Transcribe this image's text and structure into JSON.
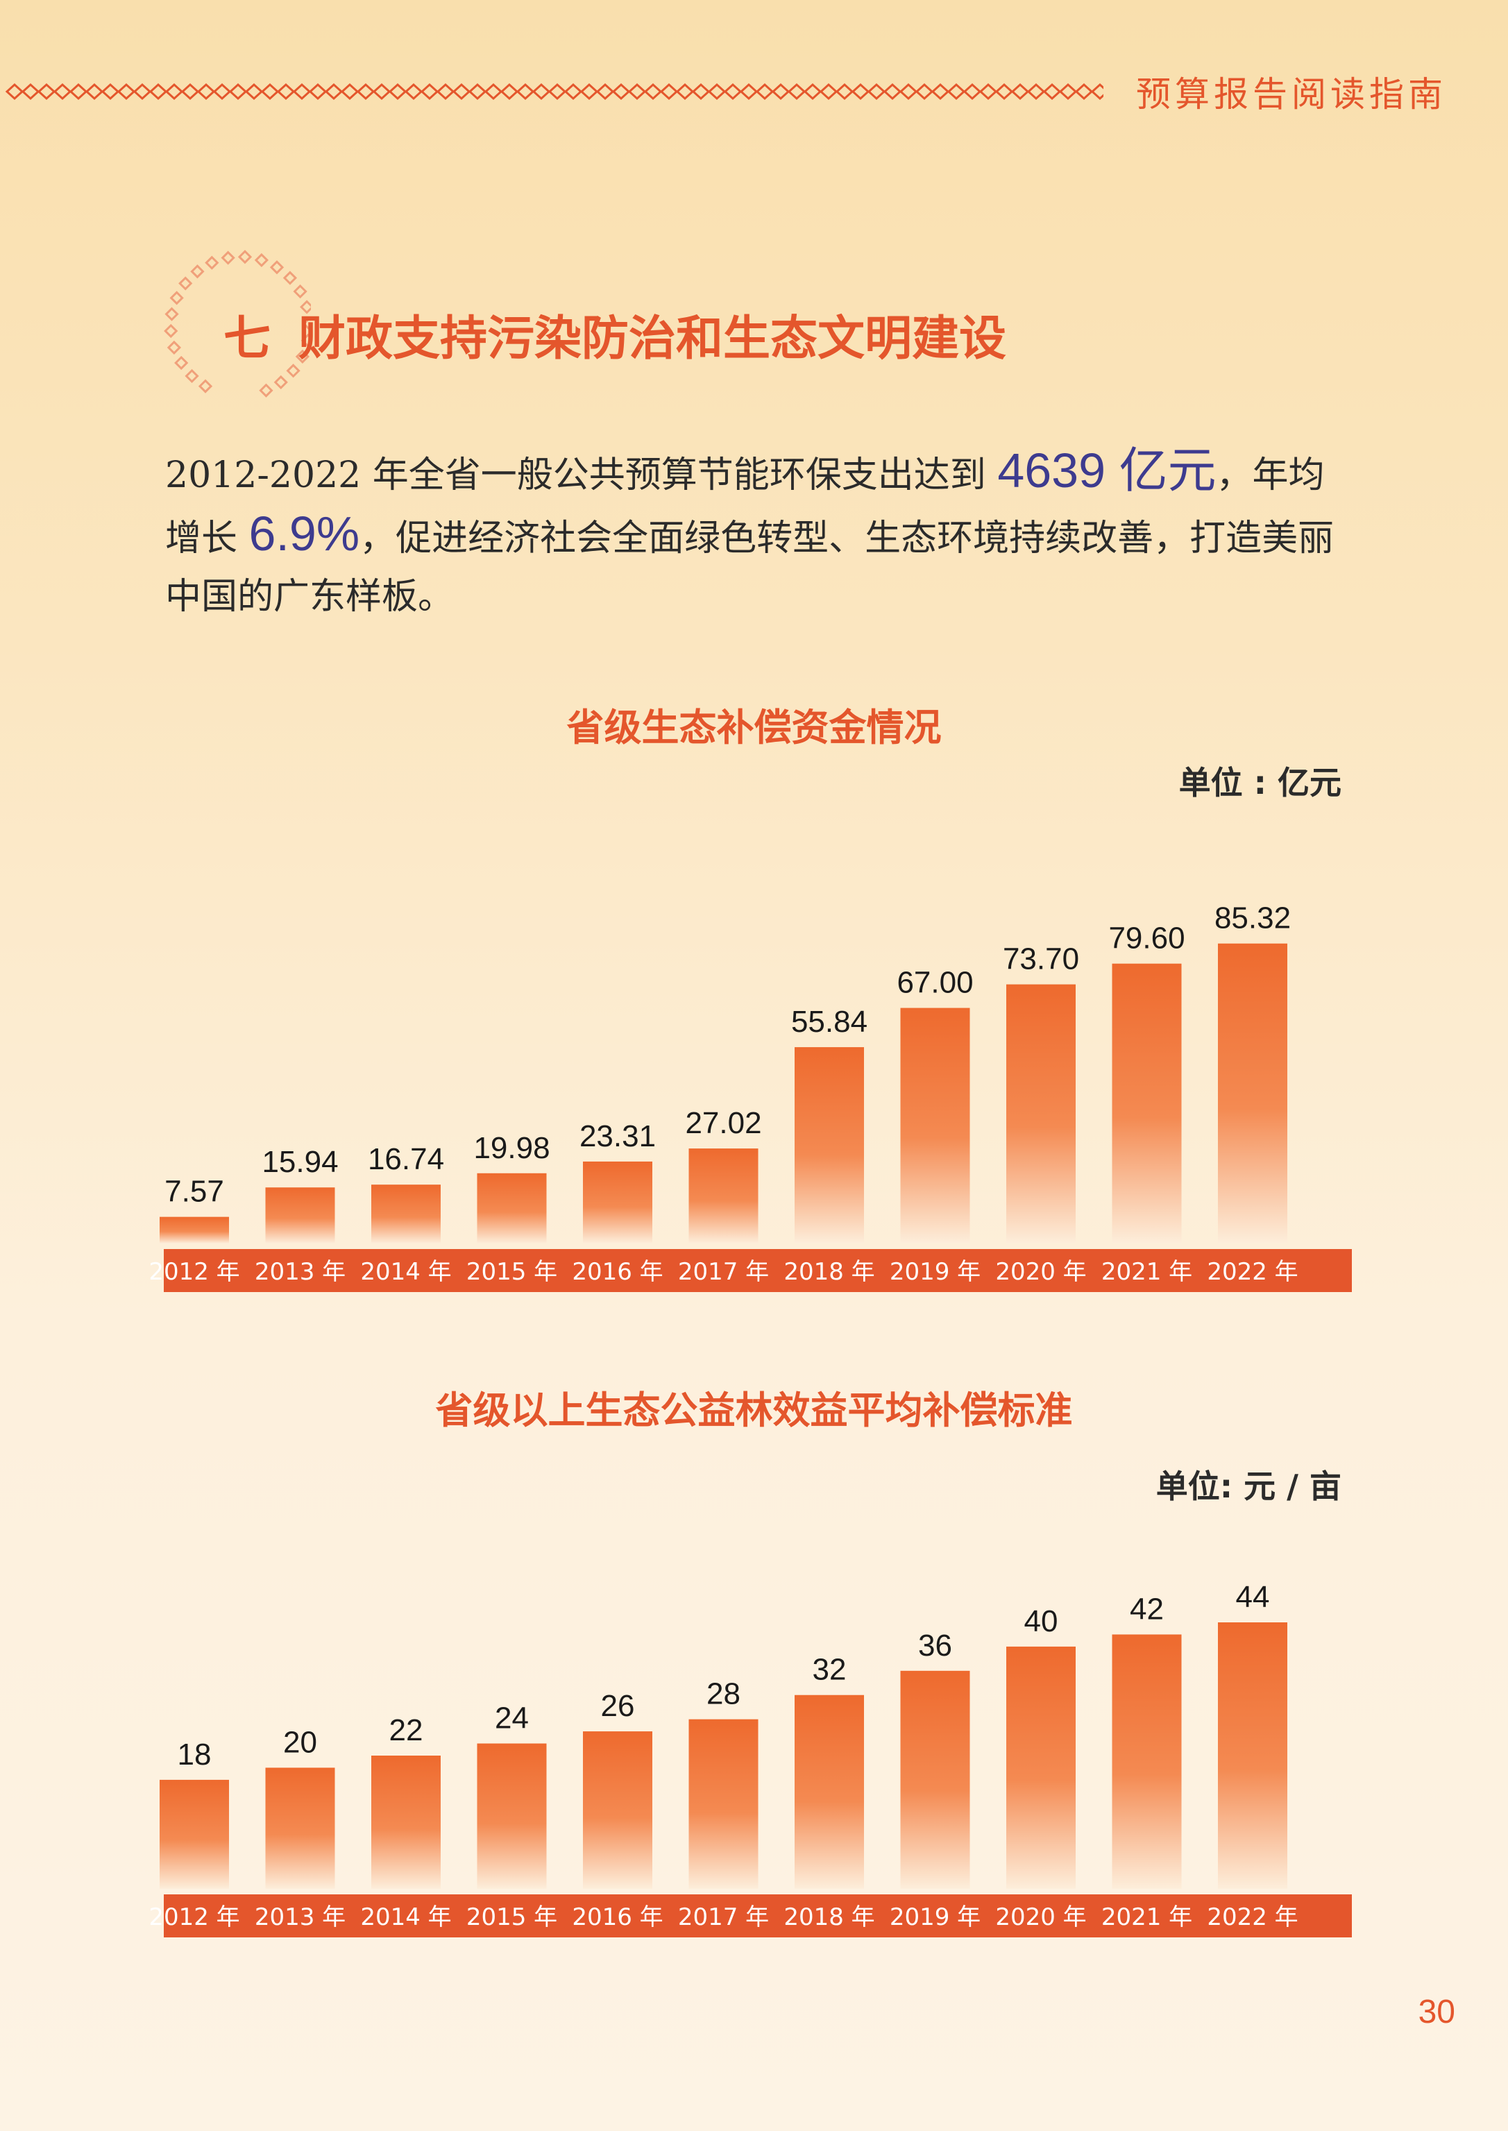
{
  "header": {
    "title": "预算报告阅读指南"
  },
  "section": {
    "number": "七",
    "title": "财政支持污染防治和生态文明建设"
  },
  "intro": {
    "part1": "2012-2022 年全省一般公共预算节能环保支出达到 ",
    "highlight1": "4639 亿元",
    "part2": "，年均增长 ",
    "highlight2": "6.9%",
    "part3": "，促进经济社会全面绿色转型、生态环境持续改善，打造美丽中国的广东样板。"
  },
  "colors": {
    "accent": "#e4562c",
    "highlight": "#3d3b8f",
    "bar_top": "#ee6a2e",
    "bar_bottom": "#fdeedb"
  },
  "chart_data": [
    {
      "type": "bar",
      "title": "省级生态补偿资金情况",
      "unit": "单位 : 亿元",
      "categories": [
        "2012 年",
        "2013 年",
        "2014 年",
        "2015 年",
        "2016 年",
        "2017 年",
        "2018 年",
        "2019 年",
        "2020 年",
        "2021 年",
        "2022 年"
      ],
      "values": [
        7.57,
        15.94,
        16.74,
        19.98,
        23.31,
        27.02,
        55.84,
        67.0,
        73.7,
        79.6,
        85.32
      ],
      "labels": [
        "7.57",
        "15.94",
        "16.74",
        "19.98",
        "23.31",
        "27.02",
        "55.84",
        "67.00",
        "73.70",
        "79.60",
        "85.32"
      ],
      "xlabel": "",
      "ylabel": "",
      "ylim": [
        0,
        90
      ],
      "grid": false
    },
    {
      "type": "bar",
      "title": "省级以上生态公益林效益平均补偿标准",
      "unit": "单位:  元 / 亩",
      "categories": [
        "2012 年",
        "2013 年",
        "2014 年",
        "2015 年",
        "2016 年",
        "2017 年",
        "2018 年",
        "2019 年",
        "2020 年",
        "2021 年",
        "2022 年"
      ],
      "values": [
        18,
        20,
        22,
        24,
        26,
        28,
        32,
        36,
        40,
        42,
        44
      ],
      "labels": [
        "18",
        "20",
        "22",
        "24",
        "26",
        "28",
        "32",
        "36",
        "40",
        "42",
        "44"
      ],
      "xlabel": "",
      "ylabel": "",
      "ylim": [
        0,
        44
      ],
      "grid": false
    }
  ],
  "page": {
    "number": "30"
  }
}
